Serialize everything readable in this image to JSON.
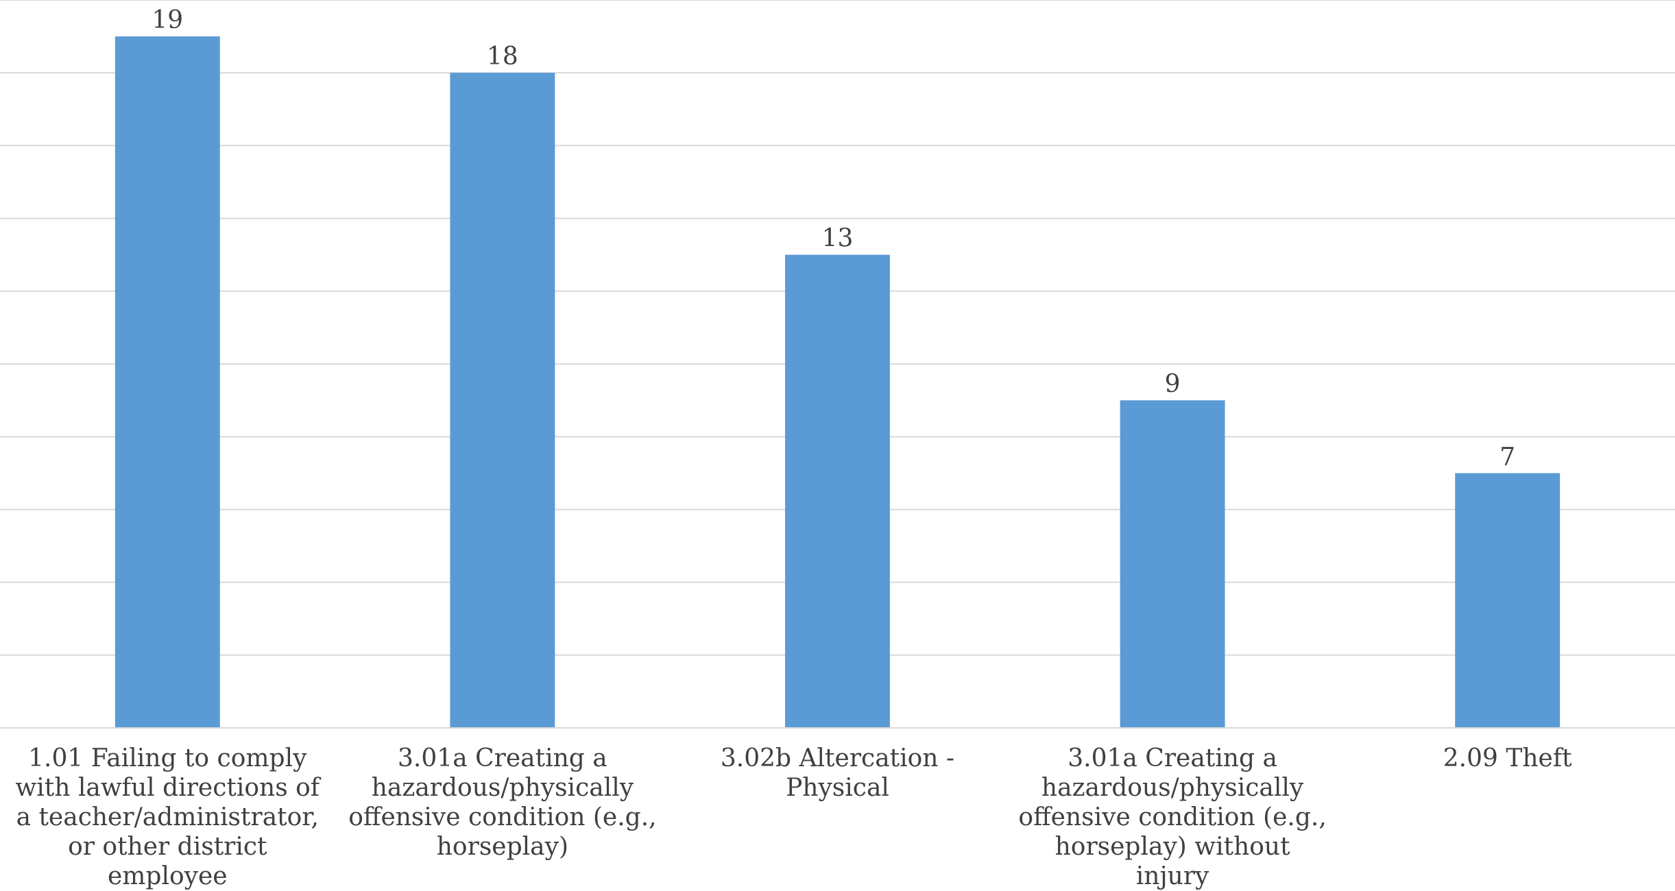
{
  "chart_data": {
    "type": "bar",
    "categories": [
      "1.01 Failing to comply with lawful directions of a teacher/administrator, or other district employee",
      "3.01a Creating a hazardous/physically offensive condition (e.g., horseplay)",
      "3.02b Altercation - Physical",
      "3.01a Creating a hazardous/physically offensive condition (e.g., horseplay) without injury",
      "2.09 Theft"
    ],
    "values": [
      19,
      18,
      13,
      9,
      7
    ],
    "data_labels": [
      "19",
      "18",
      "13",
      "9",
      "7"
    ],
    "ylim": [
      0,
      20
    ],
    "y_tick_step": 2,
    "grid": true,
    "y_axis_labels_visible": false,
    "legend": "none",
    "title": "",
    "xlabel": "",
    "ylabel": "",
    "colors": {
      "bar": "#5b9bd5",
      "grid": "#d9d9d9",
      "text": "#404040"
    }
  }
}
